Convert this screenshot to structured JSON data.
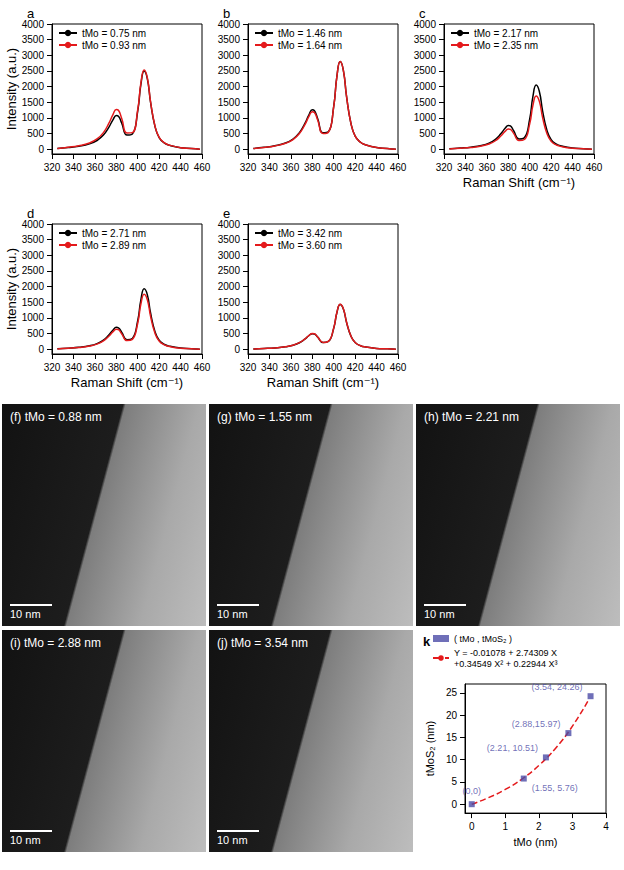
{
  "chart_data": [
    {
      "type": "line",
      "panel": "a",
      "y_label": "Intensity (a.u.)",
      "x": [
        325,
        335,
        345,
        355,
        362,
        368,
        373,
        377,
        380,
        382,
        385,
        390,
        395,
        400,
        403,
        406,
        409,
        412,
        416,
        420,
        425,
        430,
        440,
        450,
        458
      ],
      "xlim": [
        320,
        460
      ],
      "xticks": [
        320,
        340,
        360,
        380,
        400,
        420,
        440,
        460
      ],
      "ylim": [
        -150,
        4000
      ],
      "yticks": [
        0,
        500,
        1000,
        1500,
        2000,
        2500,
        3000,
        3500,
        4000
      ],
      "grid": false,
      "legend": "upper left",
      "series": [
        {
          "name": "tMo = 0.75 nm",
          "color": "#000000",
          "values": [
            22,
            54,
            97,
            173,
            281,
            454,
            702,
            950,
            1080,
            1058,
            842,
            453,
            488,
            1216,
            2080,
            2500,
            2250,
            1500,
            750,
            375,
            200,
            125,
            50,
            25,
            0
          ]
        },
        {
          "name": "tMo = 0.93 nm",
          "color": "#e41a1c",
          "values": [
            25,
            64,
            114,
            203,
            330,
            533,
            826,
            1118,
            1270,
            1245,
            991,
            521,
            532,
            1266,
            2125,
            2530,
            2277,
            1518,
            759,
            380,
            202,
            127,
            51,
            25,
            0
          ]
        }
      ]
    },
    {
      "type": "line",
      "panel": "b",
      "x": [
        325,
        335,
        345,
        355,
        362,
        368,
        373,
        377,
        380,
        382,
        385,
        390,
        395,
        400,
        403,
        406,
        409,
        412,
        416,
        420,
        425,
        430,
        440,
        450,
        458
      ],
      "xlim": [
        320,
        460
      ],
      "xticks": [
        320,
        340,
        360,
        380,
        400,
        420,
        440,
        460
      ],
      "ylim": [
        -150,
        4000
      ],
      "yticks": [
        0,
        500,
        1000,
        1500,
        2000,
        2500,
        3000,
        3500,
        4000
      ],
      "grid": false,
      "legend": "upper left",
      "series": [
        {
          "name": "tMo = 1.46 nm",
          "color": "#000000",
          "values": [
            25,
            63,
            113,
            202,
            328,
            529,
            819,
            1109,
            1260,
            1235,
            983,
            525,
            557,
            1372,
            2335,
            2800,
            2520,
            1680,
            840,
            420,
            224,
            140,
            56,
            28,
            0
          ]
        },
        {
          "name": "tMo = 1.64 nm",
          "color": "#e41a1c",
          "values": [
            24,
            60,
            108,
            192,
            312,
            504,
            780,
            1056,
            1200,
            1176,
            936,
            504,
            544,
            1360,
            2328,
            2800,
            2520,
            1680,
            840,
            420,
            224,
            140,
            56,
            28,
            0
          ]
        }
      ]
    },
    {
      "type": "line",
      "panel": "c",
      "x_label": "Raman Shift (cm⁻¹)",
      "x": [
        325,
        335,
        345,
        355,
        362,
        368,
        373,
        377,
        380,
        382,
        385,
        390,
        395,
        400,
        403,
        406,
        409,
        412,
        416,
        420,
        425,
        430,
        440,
        450,
        458
      ],
      "xlim": [
        320,
        460
      ],
      "xticks": [
        320,
        340,
        360,
        380,
        400,
        420,
        440,
        460
      ],
      "ylim": [
        -150,
        4000
      ],
      "yticks": [
        0,
        500,
        1000,
        1500,
        2000,
        2500,
        3000,
        3500,
        4000
      ],
      "grid": false,
      "legend": "upper left",
      "series": [
        {
          "name": "tMo = 2.17 nm",
          "color": "#000000",
          "values": [
            15,
            38,
            68,
            122,
            198,
            319,
            494,
            669,
            760,
            745,
            593,
            328,
            372,
            972,
            1690,
            2050,
            1845,
            1230,
            615,
            308,
            164,
            103,
            41,
            21,
            0
          ]
        },
        {
          "name": "tMo = 2.35 nm",
          "color": "#e41a1c",
          "values": [
            13,
            33,
            59,
            104,
            169,
            273,
            423,
            572,
            650,
            637,
            507,
            279,
            313,
            810,
            1404,
            1700,
            1530,
            1020,
            510,
            255,
            136,
            85,
            34,
            17,
            0
          ]
        }
      ]
    },
    {
      "type": "line",
      "panel": "d",
      "x_label": "Raman Shift (cm⁻¹)",
      "y_label": "Intensity (a.u.)",
      "x": [
        325,
        335,
        345,
        355,
        362,
        368,
        373,
        377,
        380,
        382,
        385,
        390,
        395,
        400,
        403,
        406,
        409,
        412,
        416,
        420,
        425,
        430,
        440,
        450,
        458
      ],
      "xlim": [
        320,
        460
      ],
      "xticks": [
        320,
        340,
        360,
        380,
        400,
        420,
        440,
        460
      ],
      "ylim": [
        -150,
        4000
      ],
      "yticks": [
        0,
        500,
        1000,
        1500,
        2000,
        2500,
        3000,
        3500,
        4000
      ],
      "grid": false,
      "legend": "upper left",
      "series": [
        {
          "name": "tMo = 2.71 nm",
          "color": "#000000",
          "values": [
            14,
            35,
            63,
            112,
            182,
            294,
            455,
            616,
            700,
            686,
            546,
            303,
            347,
            912,
            1589,
            1930,
            1737,
            1158,
            579,
            290,
            154,
            97,
            39,
            19,
            0
          ]
        },
        {
          "name": "tMo = 2.89 nm",
          "color": "#e41a1c",
          "values": [
            13,
            32,
            58,
            102,
            166,
            269,
            416,
            563,
            640,
            627,
            499,
            277,
            317,
            832,
            1450,
            1760,
            1584,
            1056,
            528,
            264,
            141,
            88,
            35,
            18,
            0
          ]
        }
      ]
    },
    {
      "type": "line",
      "panel": "e",
      "x_label": "Raman Shift (cm⁻¹)",
      "x": [
        325,
        335,
        345,
        355,
        362,
        368,
        373,
        377,
        380,
        382,
        385,
        390,
        395,
        400,
        403,
        406,
        409,
        412,
        416,
        420,
        425,
        430,
        440,
        450,
        458
      ],
      "xlim": [
        320,
        460
      ],
      "xticks": [
        320,
        340,
        360,
        380,
        400,
        420,
        440,
        460
      ],
      "ylim": [
        -150,
        4000
      ],
      "yticks": [
        0,
        500,
        1000,
        1500,
        2000,
        2500,
        3000,
        3500,
        4000
      ],
      "grid": false,
      "legend": "upper left",
      "series": [
        {
          "name": "tMo = 3.42 nm",
          "color": "#000000",
          "values": [
            10,
            25,
            45,
            80,
            130,
            210,
            325,
            440,
            500,
            490,
            390,
            218,
            253,
            672,
            1175,
            1430,
            1287,
            858,
            429,
            215,
            114,
            72,
            29,
            14,
            0
          ]
        },
        {
          "name": "tMo = 3.60 nm",
          "color": "#e41a1c",
          "values": [
            10,
            25,
            45,
            81,
            131,
            212,
            328,
            444,
            505,
            495,
            394,
            220,
            255,
            677,
            1184,
            1440,
            1296,
            864,
            432,
            216,
            115,
            72,
            29,
            14,
            0
          ]
        }
      ]
    },
    {
      "type": "scatter",
      "panel": "k",
      "x_label": "tMo (nm)",
      "y_label": "tMoS₂ (nm)",
      "xlim": [
        -0.2,
        4
      ],
      "xticks": [
        0,
        1,
        2,
        3,
        4
      ],
      "ylim": [
        -2,
        27
      ],
      "yticks": [
        0,
        5,
        10,
        15,
        20,
        25
      ],
      "grid": false,
      "legend": "top",
      "data_labels": true,
      "series": [
        {
          "name": "( tMo , tMoS₂ )",
          "type": "scatter",
          "marker": "square",
          "color": "#4b4ba6",
          "x": [
            0,
            1.55,
            2.21,
            2.88,
            3.54
          ],
          "values": [
            0,
            5.76,
            10.51,
            15.97,
            24.26
          ],
          "value_labels": [
            "(0,0)",
            "(1.55, 5.76)",
            "(2.21, 10.51)",
            "(2.88,15.97)",
            "(3.54, 24.26)"
          ]
        },
        {
          "name": "Y = -0.01078 + 2.74309 X +0.34549 X² + 0.22944 X³",
          "type": "line",
          "line_style": "dashed",
          "color": "#e41a1c",
          "x": [
            0,
            0.5,
            1,
            1.5,
            2,
            2.5,
            3,
            3.5
          ],
          "values": [
            -0.01,
            1.48,
            3.31,
            5.66,
            8.7,
            12.59,
            17.53,
            23.67
          ]
        }
      ]
    }
  ],
  "images": [
    {
      "label": "(f) tMo = 0.88 nm",
      "scale_bar": "10 nm"
    },
    {
      "label": "(g) tMo = 1.55 nm",
      "scale_bar": "10 nm"
    },
    {
      "label": "(h) tMo = 2.21 nm",
      "scale_bar": "10 nm"
    },
    {
      "label": "(i) tMo = 2.88 nm",
      "scale_bar": "10 nm"
    },
    {
      "label": "(j) tMo = 3.54 nm",
      "scale_bar": "10 nm"
    }
  ]
}
